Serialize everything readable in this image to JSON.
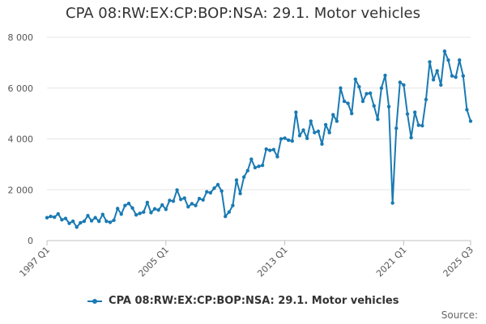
{
  "chart_data": {
    "type": "line",
    "title": "CPA 08:RW:EX:CP:BOP:NSA: 29.1. Motor vehicles",
    "xlabel": "",
    "ylabel": "",
    "ylim": [
      0,
      8000
    ],
    "yticks": [
      0,
      2000,
      4000,
      6000,
      8000
    ],
    "ytick_labels": [
      "0",
      "2 000",
      "4 000",
      "6 000",
      "8 000"
    ],
    "xtick_labels": [
      "1997 Q1",
      "2005 Q1",
      "2013 Q1",
      "2021 Q1",
      "2025 Q3"
    ],
    "xtick_index": [
      0,
      32,
      64,
      96,
      114
    ],
    "grid": true,
    "legend_position": "bottom",
    "series": [
      {
        "name": "CPA 08:RW:EX:CP:BOP:NSA: 29.1. Motor vehicles",
        "color": "#1a7ab3",
        "values": [
          900,
          950,
          920,
          1050,
          820,
          870,
          680,
          760,
          530,
          700,
          760,
          980,
          780,
          900,
          760,
          1030,
          760,
          720,
          800,
          1260,
          1040,
          1380,
          1460,
          1280,
          1010,
          1070,
          1120,
          1500,
          1100,
          1250,
          1200,
          1400,
          1230,
          1580,
          1550,
          1990,
          1620,
          1670,
          1330,
          1450,
          1380,
          1650,
          1600,
          1920,
          1880,
          2060,
          2200,
          1950,
          950,
          1120,
          1380,
          2380,
          1850,
          2500,
          2750,
          3200,
          2870,
          2920,
          2960,
          3600,
          3550,
          3580,
          3300,
          4000,
          4030,
          3950,
          3920,
          5050,
          4130,
          4350,
          4020,
          4700,
          4250,
          4300,
          3800,
          4560,
          4250,
          4950,
          4700,
          6000,
          5480,
          5400,
          5000,
          6350,
          6050,
          5480,
          5780,
          5800,
          5300,
          4770,
          6000,
          6500,
          5270,
          1480,
          4420,
          6230,
          6120,
          4980,
          4050,
          5050,
          4540,
          4520,
          5550,
          7030,
          6330,
          6680,
          6120,
          7450,
          7100,
          6480,
          6430,
          7100,
          6480,
          5150,
          4700
        ]
      }
    ]
  },
  "legend": {
    "label": "CPA 08:RW:EX:CP:BOP:NSA: 29.1. Motor vehicles"
  },
  "footer": {
    "source_label": "Source:"
  }
}
